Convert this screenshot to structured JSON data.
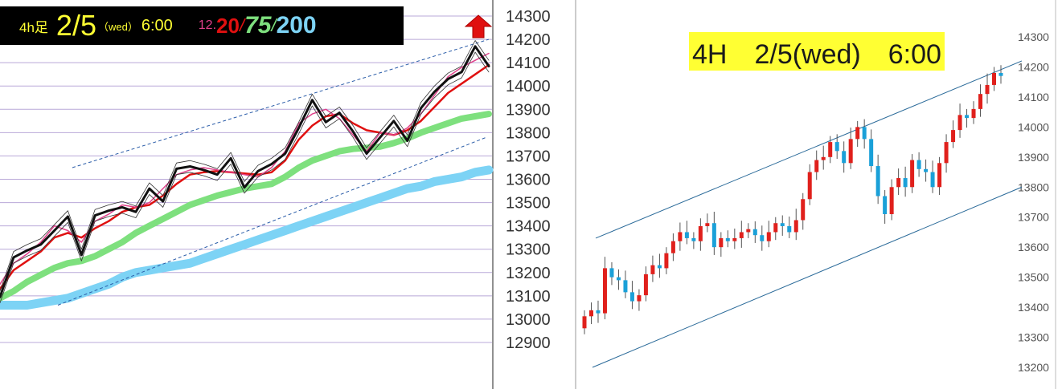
{
  "left_panel": {
    "timeframe": "4h足",
    "date": "2/5",
    "weekday": "（wed）",
    "time": "6:00",
    "ma_short_a": "12",
    "ma_short_sep": ".",
    "ma_short_b": "20",
    "ma_mid": "75",
    "ma_long": "200",
    "sep": "/",
    "colors": {
      "ma12": "#e0408a",
      "ma20": "#e01010",
      "ma75": "#7ee07e",
      "ma200": "#7dd3f5",
      "price": "#111111",
      "header_bg": "#000000",
      "header_text": "#ffff33",
      "arrow": "#e01010"
    },
    "arrow_icon": "up-arrow-icon"
  },
  "right_panel": {
    "title": "4H　2/5(wed)　6:00",
    "title_bg": "#ffff33",
    "candle_up": "#e0201c",
    "candle_down": "#1aa0d8"
  },
  "chart_data": [
    {
      "type": "line",
      "y_axis_ticks": [
        "14300",
        "14200",
        "14100",
        "14000",
        "13900",
        "13800",
        "13700",
        "13600",
        "13500",
        "13400",
        "13300",
        "13200",
        "13100",
        "13000",
        "12900"
      ],
      "ylim": [
        12880,
        14320
      ],
      "grid": true,
      "series": [
        {
          "name": "12",
          "values": [
            13150,
            13240,
            13280,
            13330,
            13400,
            13380,
            13330,
            13420,
            13450,
            13490,
            13480,
            13500,
            13560,
            13620,
            13640,
            13650,
            13640,
            13630,
            13620,
            13610,
            13650,
            13720,
            13840,
            13880,
            13900,
            13860,
            13790,
            13720,
            13800,
            13790,
            13820,
            13880,
            13960,
            14040,
            14080,
            14110,
            14140
          ]
        },
        {
          "name": "20",
          "values": [
            13130,
            13210,
            13250,
            13290,
            13350,
            13370,
            13350,
            13390,
            13420,
            13460,
            13480,
            13490,
            13530,
            13580,
            13620,
            13630,
            13635,
            13630,
            13625,
            13620,
            13630,
            13680,
            13770,
            13830,
            13870,
            13880,
            13840,
            13810,
            13800,
            13790,
            13810,
            13850,
            13910,
            13970,
            14010,
            14050,
            14090
          ]
        },
        {
          "name": "75",
          "values": [
            13090,
            13120,
            13160,
            13190,
            13220,
            13240,
            13250,
            13270,
            13300,
            13330,
            13370,
            13400,
            13430,
            13460,
            13490,
            13510,
            13530,
            13545,
            13560,
            13570,
            13580,
            13610,
            13650,
            13680,
            13700,
            13720,
            13730,
            13735,
            13740,
            13755,
            13775,
            13800,
            13820,
            13840,
            13860,
            13870,
            13880
          ]
        },
        {
          "name": "200",
          "values": [
            13060,
            13060,
            13060,
            13070,
            13080,
            13090,
            13110,
            13130,
            13150,
            13180,
            13200,
            13210,
            13220,
            13230,
            13240,
            13260,
            13280,
            13300,
            13320,
            13340,
            13360,
            13380,
            13400,
            13420,
            13440,
            13460,
            13480,
            13500,
            13520,
            13540,
            13560,
            13570,
            13590,
            13600,
            13610,
            13630,
            13640
          ]
        }
      ]
    },
    {
      "type": "candlestick",
      "y_axis_ticks": [
        "14300",
        "14200",
        "14100",
        "14000",
        "13900",
        "13800",
        "13700",
        "13600",
        "13500",
        "13400",
        "13300",
        "13200"
      ],
      "ylim": [
        13170,
        14320
      ],
      "grid": false,
      "channel_lines": [
        {
          "name": "upper",
          "values": [
            13630,
            14220
          ]
        },
        {
          "name": "lower",
          "values": [
            13200,
            13800
          ]
        }
      ],
      "series": [
        {
          "name": "close",
          "values": [
            13370,
            13390,
            13380,
            13530,
            13500,
            13490,
            13450,
            13420,
            13440,
            13510,
            13540,
            13530,
            13580,
            13620,
            13650,
            13630,
            13620,
            13670,
            13680,
            13600,
            13630,
            13620,
            13630,
            13650,
            13660,
            13640,
            13620,
            13650,
            13680,
            13670,
            13650,
            13690,
            13760,
            13850,
            13890,
            13900,
            13950,
            13920,
            13880,
            13960,
            14000,
            13960,
            13870,
            13770,
            13710,
            13800,
            13830,
            13800,
            13890,
            13860,
            13850,
            13800,
            13880,
            13950,
            13990,
            14040,
            14030,
            14060,
            14110,
            14140,
            14180,
            14170
          ]
        }
      ]
    }
  ]
}
